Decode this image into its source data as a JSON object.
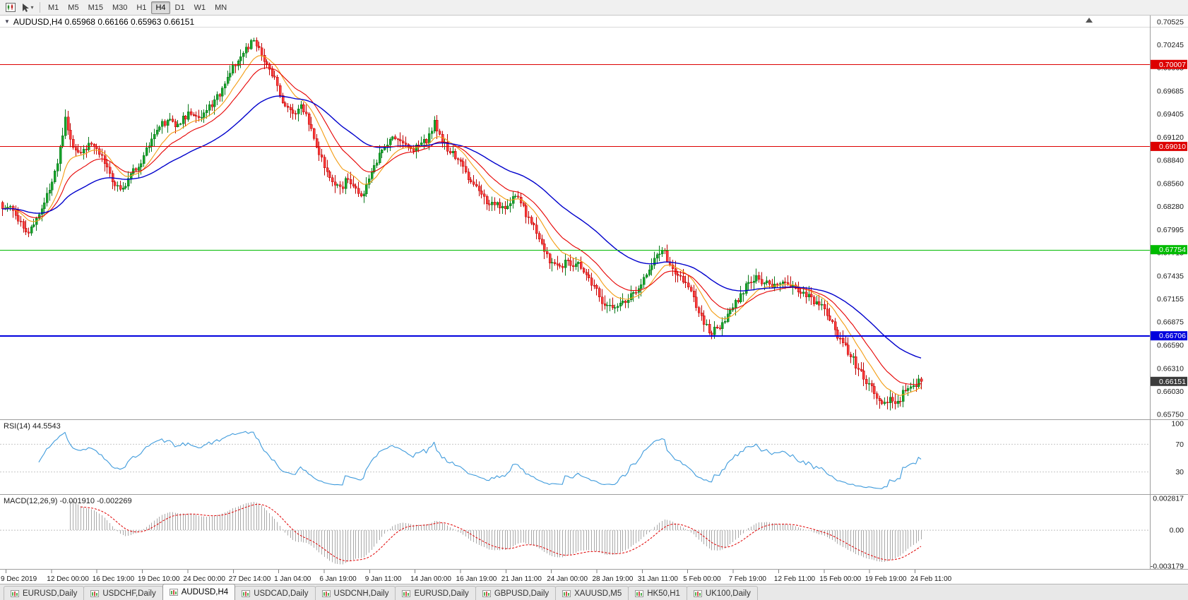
{
  "toolbar": {
    "timeframes": [
      "M1",
      "M5",
      "M15",
      "M30",
      "H1",
      "H4",
      "D1",
      "W1",
      "MN"
    ],
    "active_timeframe": "H4"
  },
  "chart": {
    "title": "AUDUSD,H4 0.65968 0.66166 0.65963 0.66151",
    "symbol": "AUDUSD",
    "timeframe": "H4",
    "open": "0.65968",
    "high": "0.66166",
    "low": "0.65963",
    "close": "0.66151"
  },
  "hlines": [
    {
      "label": "0.70007",
      "price": 0.70007,
      "color": "#dd0000",
      "width": 1
    },
    {
      "label": "0.69010",
      "price": 0.6901,
      "color": "#dd0000",
      "width": 1
    },
    {
      "label": "0.67754",
      "price": 0.67754,
      "color": "#00bb00",
      "width": 1
    },
    {
      "label": "0.66706",
      "price": 0.66706,
      "color": "#0000dd",
      "width": 2
    }
  ],
  "current_price_tag": {
    "label": "0.66151",
    "price": 0.66151,
    "bg": "#3c3c3c"
  },
  "indicators": {
    "rsi": {
      "label": "RSI(14) 44.5543",
      "color": "#3f9bdc",
      "levels": [
        "100",
        "70",
        "30"
      ],
      "level_values": [
        100,
        70,
        30
      ]
    },
    "macd": {
      "label": "MACD(12,26,9) -0.001910 -0.002269",
      "levels": [
        "0.002817",
        "0.00",
        "-0.003179"
      ],
      "level_values": [
        0.002817,
        0,
        -0.003179
      ]
    }
  },
  "tabs": [
    {
      "label": "EURUSD,Daily",
      "active": false
    },
    {
      "label": "USDCHF,Daily",
      "active": false
    },
    {
      "label": "AUDUSD,H4",
      "active": true
    },
    {
      "label": "USDCAD,Daily",
      "active": false
    },
    {
      "label": "USDCNH,Daily",
      "active": false
    },
    {
      "label": "EURUSD,Daily",
      "active": false
    },
    {
      "label": "GBPUSD,Daily",
      "active": false
    },
    {
      "label": "XAUUSD,M5",
      "active": false
    },
    {
      "label": "HK50,H1",
      "active": false
    },
    {
      "label": "UK100,Daily",
      "active": false
    }
  ],
  "chart_data": {
    "type": "candlestick",
    "title": "AUDUSD,H4",
    "y_range": [
      0.6575,
      0.70525
    ],
    "y_axis_ticks": [
      "0.70525",
      "0.70245",
      "0.69965",
      "0.69685",
      "0.69405",
      "0.69120",
      "0.68840",
      "0.68560",
      "0.68280",
      "0.67995",
      "0.67715",
      "0.67435",
      "0.67155",
      "0.66875",
      "0.66590",
      "0.66310",
      "0.66030",
      "0.65750"
    ],
    "x_axis_labels": [
      "9 Dec 2019",
      "12 Dec 00:00",
      "16 Dec 19:00",
      "19 Dec 10:00",
      "24 Dec 00:00",
      "27 Dec 14:00",
      "1 Jan 04:00",
      "6 Jan 19:00",
      "9 Jan 11:00",
      "14 Jan 00:00",
      "16 Jan 19:00",
      "21 Jan 11:00",
      "24 Jan 00:00",
      "28 Jan 19:00",
      "31 Jan 11:00",
      "5 Feb 00:00",
      "7 Feb 19:00",
      "12 Feb 11:00",
      "15 Feb 00:00",
      "19 Feb 19:00",
      "24 Feb 11:00"
    ],
    "close_path": [
      0.6825,
      0.6828,
      0.681,
      0.6797,
      0.6806,
      0.6825,
      0.6848,
      0.688,
      0.6937,
      0.69,
      0.6893,
      0.6905,
      0.6898,
      0.688,
      0.6858,
      0.6849,
      0.6862,
      0.6872,
      0.689,
      0.691,
      0.6925,
      0.6933,
      0.6925,
      0.6938,
      0.694,
      0.6936,
      0.6945,
      0.6958,
      0.6972,
      0.699,
      0.7005,
      0.7022,
      0.703,
      0.7012,
      0.6995,
      0.6975,
      0.695,
      0.6941,
      0.6952,
      0.6928,
      0.69,
      0.6875,
      0.6858,
      0.6852,
      0.6861,
      0.685,
      0.6843,
      0.687,
      0.6893,
      0.6903,
      0.691,
      0.6905,
      0.6898,
      0.6903,
      0.6905,
      0.6933,
      0.6905,
      0.6893,
      0.6885,
      0.687,
      0.6855,
      0.6843,
      0.683,
      0.6833,
      0.6825,
      0.684,
      0.6832,
      0.6815,
      0.6795,
      0.6773,
      0.676,
      0.6755,
      0.6762,
      0.6758,
      0.6748,
      0.6732,
      0.6718,
      0.6708,
      0.6705,
      0.6713,
      0.6722,
      0.6728,
      0.6745,
      0.6765,
      0.6775,
      0.6757,
      0.6744,
      0.6735,
      0.6718,
      0.6695,
      0.6674,
      0.668,
      0.6688,
      0.6705,
      0.6722,
      0.6736,
      0.6744,
      0.6735,
      0.673,
      0.6734,
      0.6733,
      0.6728,
      0.6724,
      0.6718,
      0.6708,
      0.6695,
      0.6678,
      0.6662,
      0.6645,
      0.663,
      0.6612,
      0.66,
      0.6588,
      0.6596,
      0.6591,
      0.6604,
      0.661,
      0.66151
    ],
    "interpolation": 3,
    "noise_seed": 11,
    "colors": {
      "up_fill": "#17a32b",
      "up_stroke": "#0b7a1d",
      "down_fill": "#f93b3b",
      "down_stroke": "#bf0000"
    },
    "moving_averages": [
      {
        "name": "fast",
        "period": 12,
        "color": "#f39c12"
      },
      {
        "name": "medium",
        "period": 22,
        "color": "#e60000"
      },
      {
        "name": "slow",
        "period": 55,
        "color": "#0000cc"
      }
    ],
    "horizontal_levels": [
      0.70007,
      0.6901,
      0.67754,
      0.66706
    ],
    "last_price": 0.66151,
    "rsi": {
      "period": 14,
      "current": 44.5543
    },
    "macd": {
      "fast": 12,
      "slow": 26,
      "signal": 9,
      "current": -0.00191,
      "signal_current": -0.002269,
      "scale_max": 0.002817,
      "scale_min": -0.003179
    }
  }
}
